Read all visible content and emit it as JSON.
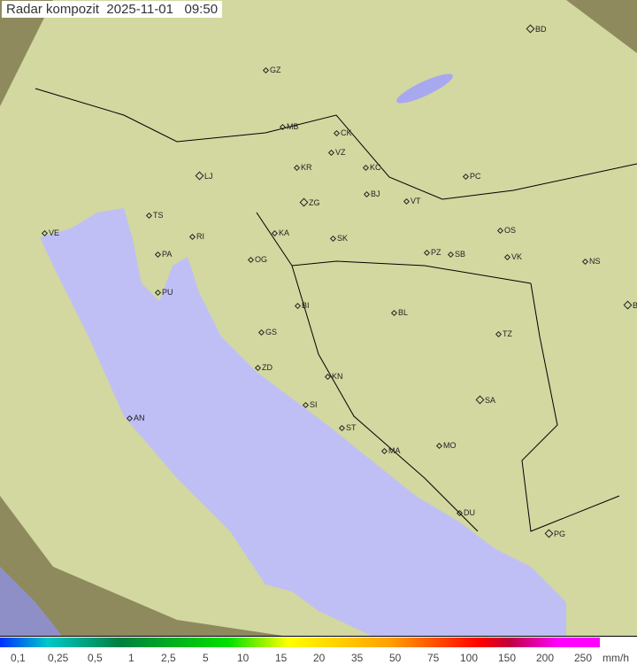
{
  "title": "Radar kompozit  2025-11-01   09:50",
  "colors": {
    "sea": "#bfbff5",
    "land": "#d2d8a0",
    "outside": "#8e8a5e"
  },
  "cities": [
    "BD",
    "GZ",
    "MB",
    "CK",
    "VZ",
    "KR",
    "KC",
    "LJ",
    "PC",
    "BJ",
    "ZG",
    "TS",
    "VT",
    "VE",
    "KA",
    "RI",
    "SK",
    "OS",
    "PA",
    "PZ",
    "SB",
    "VK",
    "NS",
    "OG",
    "PU",
    "BI",
    "BG",
    "BL",
    "GS",
    "TZ",
    "ZD",
    "KN",
    "SA",
    "AN",
    "SI",
    "ST",
    "MO",
    "MA",
    "DU",
    "PG"
  ],
  "legend": {
    "labels": [
      "0,1",
      "0,25",
      "0,5",
      "1",
      "2,5",
      "5",
      "10",
      "15",
      "20",
      "35",
      "50",
      "75",
      "100",
      "150",
      "200",
      "250"
    ],
    "unit": "mm/h"
  }
}
